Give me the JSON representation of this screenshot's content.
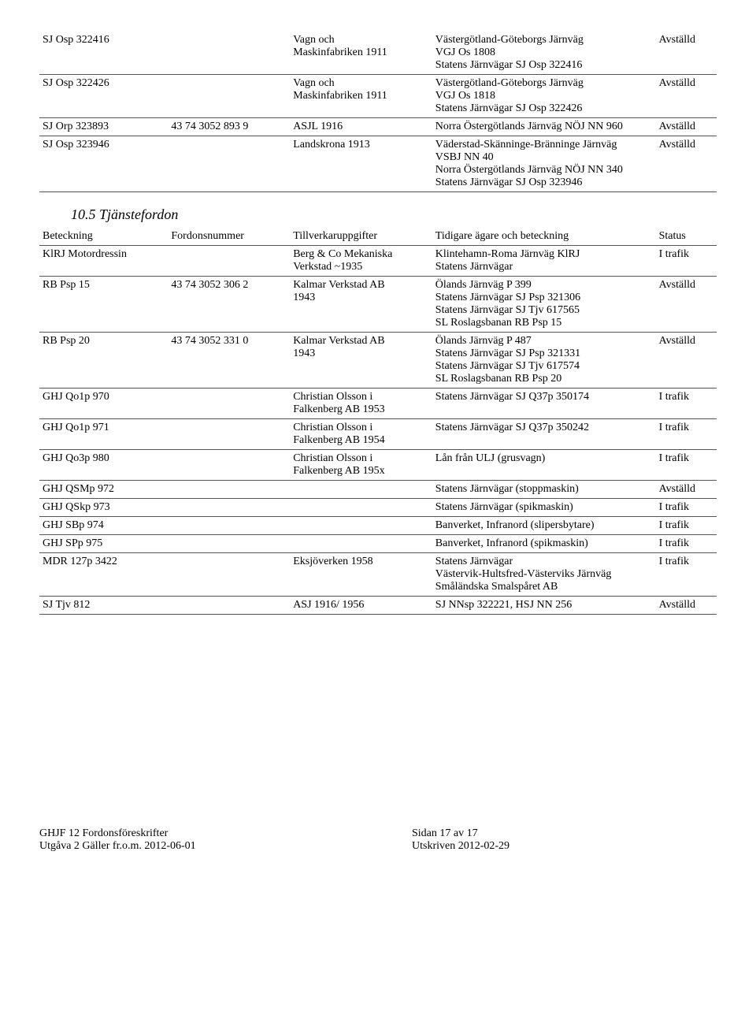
{
  "top_rows": [
    {
      "c1": "SJ Osp 322416",
      "c2": "",
      "c3": [
        "Vagn och",
        "Maskinfabriken 1911"
      ],
      "c4": [
        "Västergötland-Göteborgs Järnväg",
        "VGJ Os 1808",
        "Statens Järnvägar SJ Osp 322416"
      ],
      "c5": "Avställd"
    },
    {
      "c1": "SJ Osp 322426",
      "c2": "",
      "c3": [
        "Vagn och",
        "Maskinfabriken 1911"
      ],
      "c4": [
        "Västergötland-Göteborgs Järnväg",
        "VGJ Os 1818",
        "Statens Järnvägar SJ Osp 322426"
      ],
      "c5": "Avställd"
    },
    {
      "c1": "SJ Orp 323893",
      "c2": "43 74 3052 893 9",
      "c3": [
        "ASJL 1916"
      ],
      "c4": [
        "Norra Östergötlands Järnväg NÖJ NN 960"
      ],
      "c5": "Avställd"
    },
    {
      "c1": "SJ Osp 323946",
      "c2": "",
      "c3": [
        "Landskrona 1913"
      ],
      "c4": [
        "Väderstad-Skänninge-Bränninge Järnväg",
        "VSBJ NN 40",
        "Norra Östergötlands Järnväg NÖJ NN 340",
        "Statens Järnvägar SJ Osp 323946"
      ],
      "c5": "Avställd"
    }
  ],
  "section_title": "10.5 Tjänstefordon",
  "headers": {
    "c1": "Beteckning",
    "c2": "Fordonsnummer",
    "c3": "Tillverkaruppgifter",
    "c4": "Tidigare ägare och beteckning",
    "c5": "Status"
  },
  "bottom_rows": [
    {
      "c1": "KlRJ Motordressin",
      "c2": "",
      "c3": [
        "Berg & Co Mekaniska",
        "Verkstad ~1935"
      ],
      "c4": [
        "Klintehamn-Roma Järnväg KlRJ",
        "Statens Järnvägar"
      ],
      "c5": "I trafik"
    },
    {
      "c1": "RB Psp 15",
      "c2": "43 74 3052 306 2",
      "c3": [
        "Kalmar Verkstad AB",
        "1943"
      ],
      "c4": [
        "Ölands Järnväg P 399",
        "Statens Järnvägar SJ Psp 321306",
        "Statens Järnvägar SJ Tjv 617565",
        "SL Roslagsbanan RB Psp 15"
      ],
      "c5": "Avställd"
    },
    {
      "c1": "RB Psp 20",
      "c2": "43 74 3052 331 0",
      "c3": [
        "Kalmar Verkstad AB",
        "1943"
      ],
      "c4": [
        "Ölands Järnväg P 487",
        "Statens Järnvägar SJ Psp 321331",
        "Statens Järnvägar SJ Tjv 617574",
        "SL Roslagsbanan RB Psp 20"
      ],
      "c5": "Avställd"
    },
    {
      "c1": "GHJ Qo1p 970",
      "c2": "",
      "c3": [
        "Christian Olsson i",
        "Falkenberg AB 1953"
      ],
      "c4": [
        "Statens Järnvägar SJ Q37p 350174"
      ],
      "c5": "I trafik"
    },
    {
      "c1": "GHJ Qo1p 971",
      "c2": "",
      "c3": [
        "Christian Olsson i",
        "Falkenberg AB 1954"
      ],
      "c4": [
        "Statens Järnvägar SJ Q37p 350242"
      ],
      "c5": "I trafik"
    },
    {
      "c1": "GHJ Qo3p 980",
      "c2": "",
      "c3": [
        "Christian Olsson i",
        "Falkenberg AB 195x"
      ],
      "c4": [
        "Lån från ULJ (grusvagn)"
      ],
      "c5": "I trafik"
    },
    {
      "c1": "GHJ QSMp 972",
      "c2": "",
      "c3": [
        ""
      ],
      "c4": [
        "Statens Järnvägar (stoppmaskin)"
      ],
      "c5": "Avställd"
    },
    {
      "c1": "GHJ QSkp 973",
      "c2": "",
      "c3": [
        ""
      ],
      "c4": [
        "Statens Järnvägar (spikmaskin)"
      ],
      "c5": "I trafik"
    },
    {
      "c1": "GHJ SBp 974",
      "c2": "",
      "c3": [
        ""
      ],
      "c4": [
        "Banverket, Infranord (slipersbytare)"
      ],
      "c5": "I trafik"
    },
    {
      "c1": "GHJ SPp 975",
      "c2": "",
      "c3": [
        ""
      ],
      "c4": [
        "Banverket, Infranord (spikmaskin)"
      ],
      "c5": "I trafik"
    },
    {
      "c1": "MDR 127p 3422",
      "c2": "",
      "c3": [
        "Eksjöverken 1958"
      ],
      "c4": [
        "Statens Järnvägar",
        "Västervik-Hultsfred-Västerviks Järnväg",
        "Småländska Smalspåret AB"
      ],
      "c5": "I trafik"
    },
    {
      "c1": "SJ Tjv 812",
      "c2": "",
      "c3": [
        "ASJ 1916/ 1956"
      ],
      "c4": [
        "SJ NNsp 322221, HSJ NN 256"
      ],
      "c5": "Avställd"
    }
  ],
  "footer": {
    "l1": "GHJF 12 Fordonsföreskrifter",
    "l2": "Utgåva 2 Gäller fr.o.m. 2012-06-01",
    "r1": "Sidan 17 av 17",
    "r2": "Utskriven 2012-02-29"
  }
}
